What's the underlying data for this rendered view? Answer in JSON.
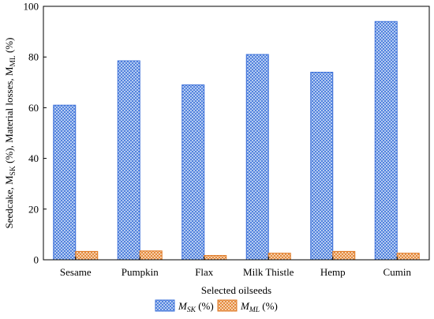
{
  "chart_data": {
    "type": "bar",
    "title": "",
    "xlabel": "Selected oilseeds",
    "ylabel": {
      "part1": "Seedcake, M",
      "part1_sub": "SK",
      "part2": " (%), Material losses, M",
      "part2_sub": "ML",
      "part3": " (%)"
    },
    "categories": [
      "Sesame",
      "Pumpkin",
      "Flax",
      "Milk Thistle",
      "Hemp",
      "Cumin"
    ],
    "ylim": [
      0,
      100
    ],
    "yticks": [
      0,
      20,
      40,
      60,
      80,
      100
    ],
    "grid": false,
    "legend_position": "bottom-center",
    "series": [
      {
        "name": "M_SK (%)",
        "legend": {
          "main": "M",
          "sub": "SK",
          "suffix": " (%)"
        },
        "values": [
          61,
          78.5,
          69,
          81,
          74,
          94
        ],
        "color": "#3a6fd8",
        "fill_color": "#cfe0f7"
      },
      {
        "name": "M_ML (%)",
        "legend": {
          "main": "M",
          "sub": "ML",
          "suffix": " (%)"
        },
        "values": [
          3.3,
          3.5,
          1.7,
          2.6,
          3.3,
          2.6
        ],
        "color": "#e07a25",
        "fill_color": "#fbe2c8"
      }
    ]
  }
}
